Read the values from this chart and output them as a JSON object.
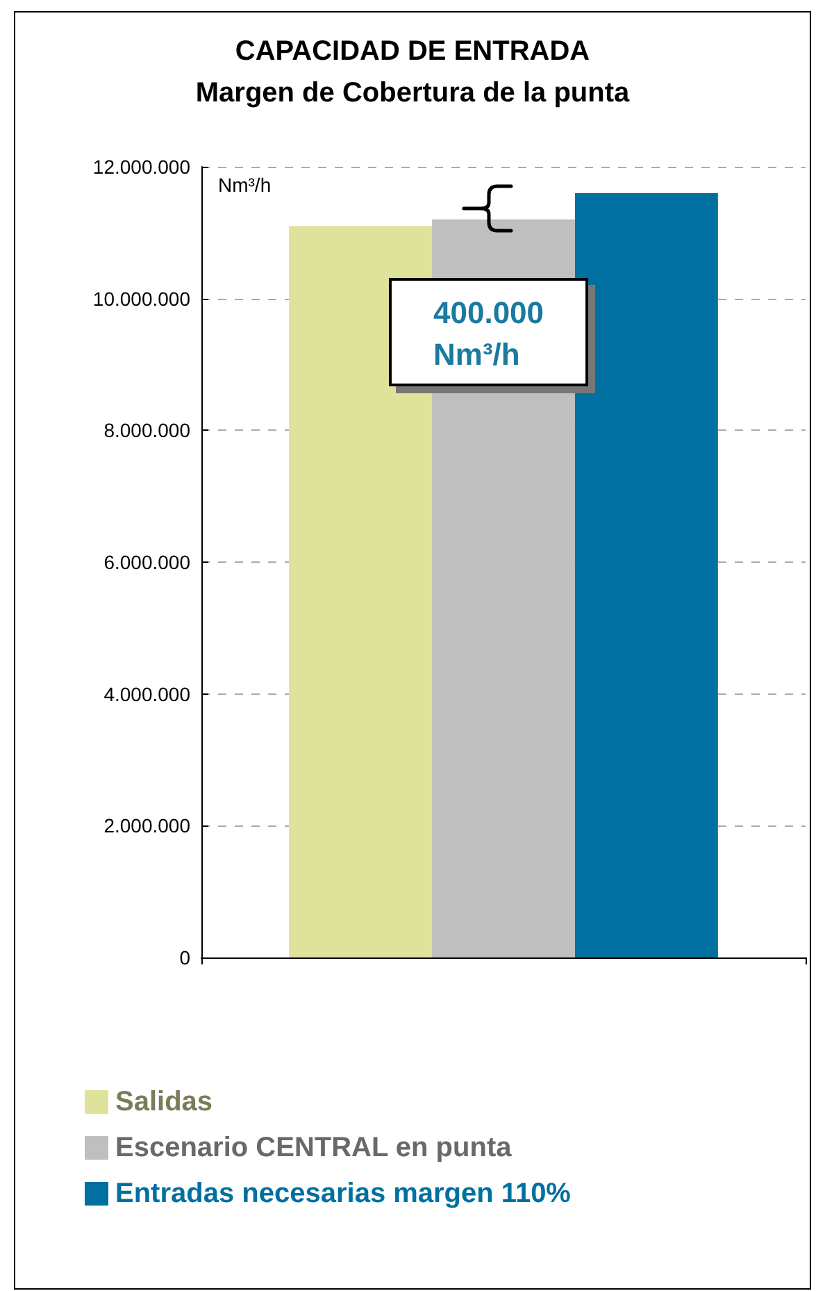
{
  "chart_data": {
    "type": "bar",
    "title": "CAPACIDAD DE ENTRADA",
    "subtitle": "Margen de Cobertura de la punta",
    "ylabel": "Nm³/h",
    "categories": [
      null
    ],
    "series": [
      {
        "name": "Salidas",
        "color": "#dfe29a",
        "values": [
          11100000
        ]
      },
      {
        "name": "Escenario CENTRAL en punta",
        "color": "#bfbfbf",
        "values": [
          11200000
        ]
      },
      {
        "name": "Entradas necesarias margen 110%",
        "color": "#0070a0",
        "values": [
          11600000
        ]
      }
    ],
    "ylim": [
      0,
      12000000
    ],
    "yticks": [
      0,
      {
        "value": 2000000,
        "label": "2.000.000"
      },
      {
        "value": 4000000,
        "label": "4.000.000"
      },
      {
        "value": 6000000,
        "label": "6.000.000"
      },
      {
        "value": 8000000,
        "label": "8.000.000"
      },
      {
        "value": 10000000,
        "label": "10.000.000"
      },
      {
        "value": 12000000,
        "label": "12.000.000"
      }
    ],
    "grid": "y",
    "legend": "bottom left",
    "annotations": [
      "400.000 Nm³/h"
    ]
  }
}
